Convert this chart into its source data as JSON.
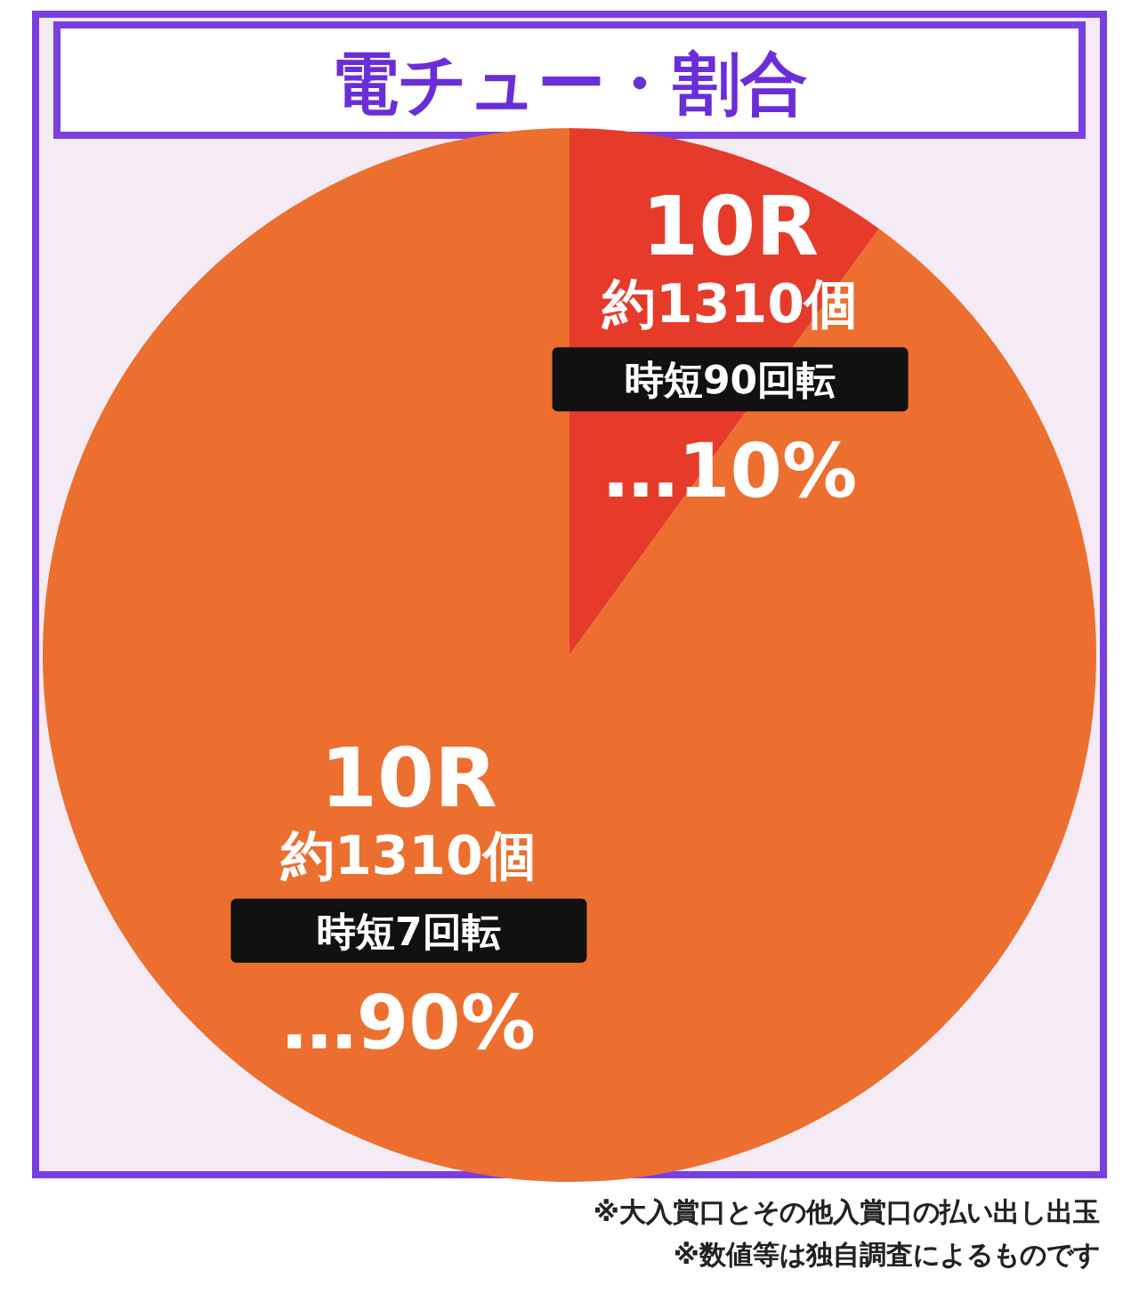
{
  "chart_data": {
    "type": "pie",
    "title": "電チュー・割合",
    "categories": [
      "時短90回転",
      "時短7回転"
    ],
    "values": [
      10,
      90
    ],
    "colors": [
      "#e63b2a",
      "#ec6f2f"
    ],
    "value_labels": [
      "…10%",
      "…90%"
    ],
    "legend": false,
    "annotations": [
      "10R",
      "約1310個",
      "10R",
      "約1310個",
      "※大入賞口とその他入賞口の払い出し出玉",
      "※数値等は独自調査によるものです"
    ]
  }
}
